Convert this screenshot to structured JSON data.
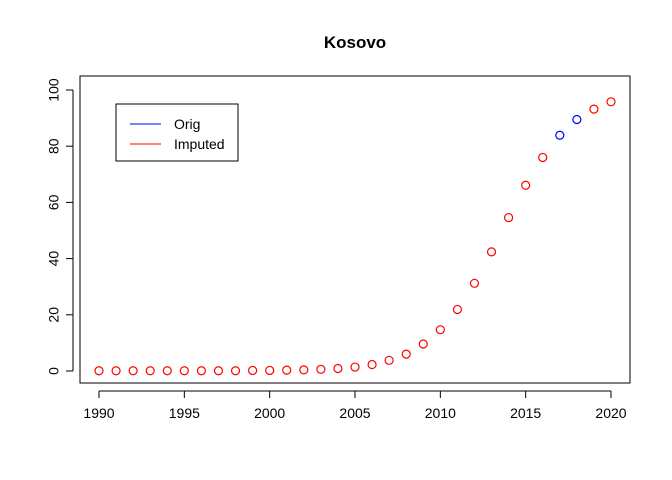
{
  "chart_data": {
    "type": "scatter",
    "title": "Kosovo",
    "xlabel": "",
    "ylabel": "",
    "xlim": [
      1990,
      2020
    ],
    "ylim": [
      0,
      100
    ],
    "x_ticks": [
      "1990",
      "1995",
      "2000",
      "2005",
      "2010",
      "2015",
      "2020"
    ],
    "y_ticks": [
      "0",
      "20",
      "40",
      "60",
      "80",
      "100"
    ],
    "grid": false,
    "legend": {
      "position": "top-left",
      "entries": [
        "Orig",
        "Imputed"
      ]
    },
    "series": [
      {
        "name": "Imputed",
        "color": "#ff0000",
        "marker": "open-circle",
        "points": [
          [
            1990,
            0.1
          ],
          [
            1991,
            0.1
          ],
          [
            1992,
            0.1
          ],
          [
            1993,
            0.1
          ],
          [
            1994,
            0.1
          ],
          [
            1995,
            0.1
          ],
          [
            1996,
            0.1
          ],
          [
            1997,
            0.1
          ],
          [
            1998,
            0.1
          ],
          [
            1999,
            0.2
          ],
          [
            2000,
            0.2
          ],
          [
            2001,
            0.3
          ],
          [
            2002,
            0.4
          ],
          [
            2003,
            0.6
          ],
          [
            2004,
            0.9
          ],
          [
            2005,
            1.4
          ],
          [
            2006,
            2.3
          ],
          [
            2007,
            3.8
          ],
          [
            2008,
            6.0
          ],
          [
            2009,
            9.6
          ],
          [
            2010,
            14.7
          ],
          [
            2011,
            21.9
          ],
          [
            2012,
            31.2
          ],
          [
            2013,
            42.4
          ],
          [
            2014,
            54.6
          ],
          [
            2015,
            66.1
          ],
          [
            2016,
            76.0
          ],
          [
            2019,
            93.2
          ],
          [
            2020,
            95.8
          ]
        ]
      },
      {
        "name": "Orig",
        "color": "#0000ff",
        "marker": "open-circle",
        "points": [
          [
            2017,
            83.9
          ],
          [
            2018,
            89.5
          ]
        ]
      }
    ]
  }
}
